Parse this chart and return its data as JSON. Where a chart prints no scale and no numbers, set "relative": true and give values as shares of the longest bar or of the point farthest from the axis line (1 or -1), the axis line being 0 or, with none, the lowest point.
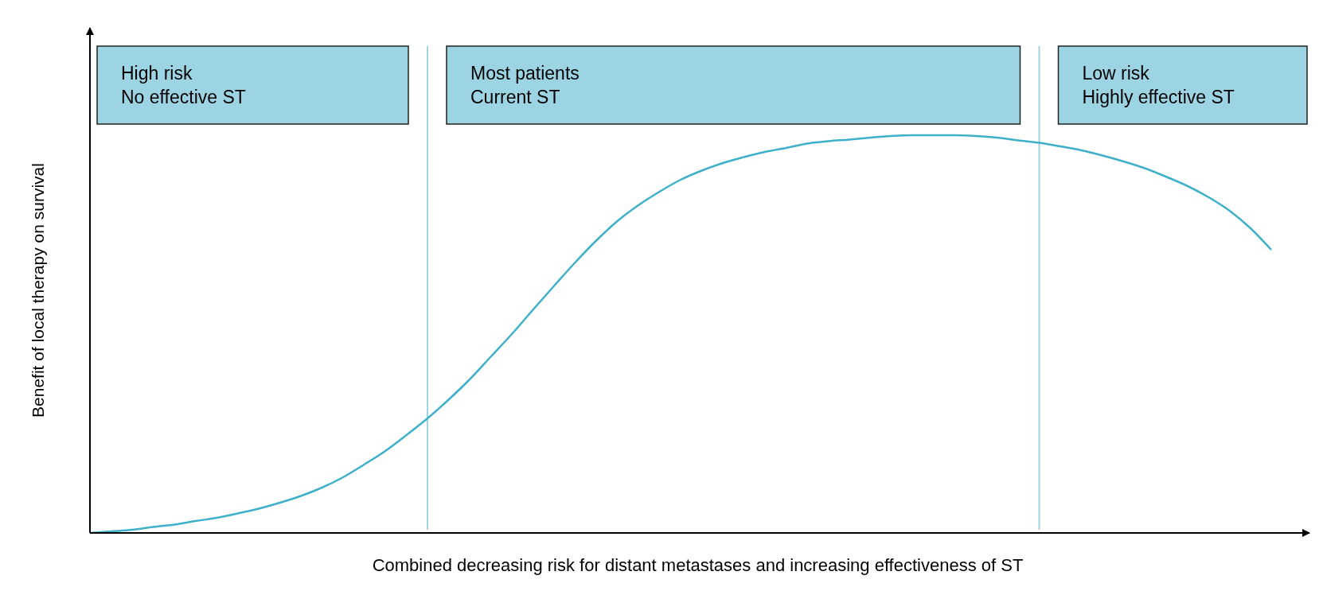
{
  "chart_data": {
    "type": "line",
    "relative": true,
    "xlabel": "Combined decreasing risk for distant metastases and increasing effectiveness of ST",
    "ylabel": "Benefit of local therapy on survival",
    "categories": [
      null,
      null,
      null,
      null,
      null,
      null,
      null,
      null,
      null,
      null,
      null,
      null,
      null,
      null,
      null,
      null,
      null,
      null,
      null,
      null,
      null,
      null,
      null,
      null,
      null,
      null,
      null,
      null,
      null,
      null,
      null,
      null,
      null,
      null,
      null,
      null,
      null,
      null,
      null,
      null,
      null,
      null,
      null,
      null,
      null,
      null,
      null,
      null,
      null,
      null,
      null,
      null,
      null,
      null,
      null,
      null,
      null
    ],
    "series": [
      {
        "color": "#3fb0c9",
        "values": [
          0,
          0.004,
          0.008,
          0.015,
          0.021,
          0.03,
          0.038,
          0.049,
          0.061,
          0.076,
          0.093,
          0.114,
          0.14,
          0.172,
          0.206,
          0.246,
          0.288,
          0.335,
          0.386,
          0.443,
          0.5,
          0.561,
          0.621,
          0.68,
          0.735,
          0.784,
          0.824,
          0.858,
          0.888,
          0.911,
          0.93,
          0.945,
          0.958,
          0.968,
          0.979,
          0.985,
          0.989,
          0.994,
          0.998,
          1,
          1,
          1,
          0.998,
          0.994,
          0.987,
          0.981,
          0.972,
          0.962,
          0.949,
          0.934,
          0.917,
          0.896,
          0.873,
          0.845,
          0.811,
          0.767,
          0.712
        ]
      }
    ],
    "annotations": [
      "High risk\nNo effective ST",
      "Most patients\nCurrent ST",
      "Low risk\nHighly effective ST"
    ],
    "marker": "none",
    "line_style": "solid"
  }
}
